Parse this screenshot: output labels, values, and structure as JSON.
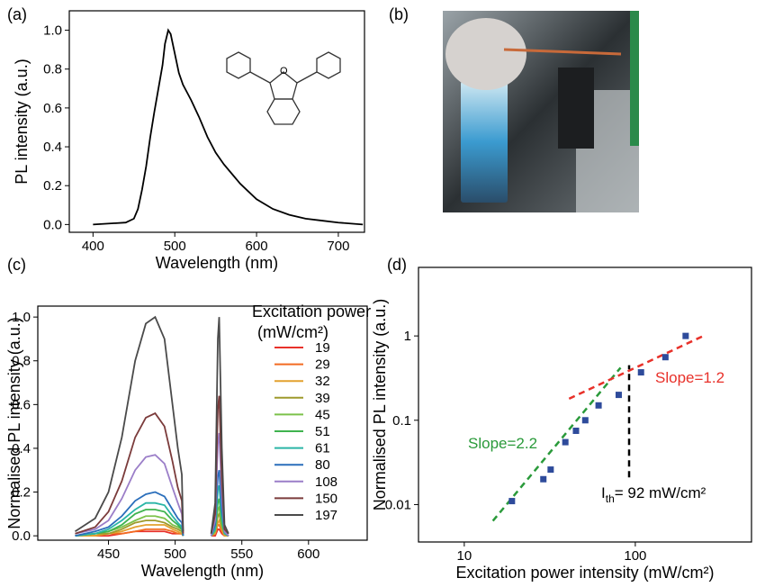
{
  "chart_data": [
    {
      "type": "line",
      "panel_label": "(a)",
      "x_label": "Wavelength (nm)",
      "y_label": "PL intensity (a.u.)",
      "color": "#000000",
      "x": [
        400,
        440,
        450,
        455,
        460,
        465,
        470,
        475,
        480,
        485,
        488,
        492,
        495,
        500,
        505,
        510,
        515,
        520,
        530,
        540,
        550,
        560,
        570,
        580,
        590,
        600,
        620,
        640,
        660,
        680,
        700,
        730
      ],
      "values": [
        0,
        0.01,
        0.03,
        0.08,
        0.18,
        0.3,
        0.45,
        0.58,
        0.7,
        0.82,
        0.93,
        1.0,
        0.98,
        0.88,
        0.78,
        0.72,
        0.68,
        0.64,
        0.55,
        0.45,
        0.37,
        0.31,
        0.26,
        0.21,
        0.17,
        0.13,
        0.08,
        0.05,
        0.03,
        0.02,
        0.01,
        0
      ],
      "xlim": [
        371,
        732
      ],
      "ylim": [
        -0.04,
        1.1
      ],
      "xticks": [
        400,
        500,
        600,
        700
      ],
      "yticks": [
        {
          "value": 0,
          "label": "0.0"
        },
        0.2,
        0.4,
        0.6,
        0.8,
        {
          "value": 1,
          "label": "1.0"
        }
      ]
    },
    {
      "type": "line",
      "panel_label": "(c)",
      "x_label": "Wavelength (nm)",
      "y_label": "Normalised PL intensity (a.u.)",
      "legend_title": [
        "Excitation power",
        "(mW/cm²)"
      ],
      "x": [
        425,
        440,
        450,
        460,
        470,
        478,
        485,
        492,
        498,
        502,
        505,
        506,
        515,
        527,
        530,
        532,
        533,
        535,
        537,
        540
      ],
      "series": [
        {
          "name": "19",
          "color": "#e8312a",
          "values": [
            0,
            0,
            0,
            0.01,
            0.02,
            0.02,
            0.02,
            0.02,
            0.01,
            0.01,
            0.01,
            0,
            null,
            0,
            0,
            0.03,
            0.03,
            0.01,
            0,
            0
          ]
        },
        {
          "name": "29",
          "color": "#f26b21",
          "values": [
            0,
            0,
            0.01,
            0.01,
            0.02,
            0.03,
            0.03,
            0.03,
            0.02,
            0.01,
            0.01,
            0,
            null,
            0,
            0.01,
            0.05,
            0.05,
            0.02,
            0,
            0
          ]
        },
        {
          "name": "32",
          "color": "#e3a12f",
          "values": [
            0,
            0,
            0.01,
            0.02,
            0.04,
            0.05,
            0.05,
            0.05,
            0.03,
            0.02,
            0.01,
            0,
            null,
            0,
            0.01,
            0.06,
            0.07,
            0.03,
            0,
            0
          ]
        },
        {
          "name": "39",
          "color": "#9e9a2c",
          "values": [
            0,
            0.01,
            0.01,
            0.03,
            0.06,
            0.07,
            0.07,
            0.06,
            0.04,
            0.03,
            0.02,
            0,
            null,
            0,
            0.02,
            0.09,
            0.1,
            0.04,
            0.01,
            0
          ]
        },
        {
          "name": "45",
          "color": "#7cc24a",
          "values": [
            0,
            0.01,
            0.02,
            0.04,
            0.07,
            0.09,
            0.09,
            0.08,
            0.05,
            0.04,
            0.03,
            0,
            null,
            0,
            0.02,
            0.12,
            0.13,
            0.05,
            0.01,
            0
          ]
        },
        {
          "name": "51",
          "color": "#3fb34f",
          "values": [
            0,
            0.01,
            0.02,
            0.05,
            0.1,
            0.12,
            0.12,
            0.11,
            0.07,
            0.05,
            0.03,
            0,
            null,
            0,
            0.03,
            0.15,
            0.17,
            0.07,
            0.01,
            0
          ]
        },
        {
          "name": "61",
          "color": "#2ab5a6",
          "values": [
            0,
            0.01,
            0.03,
            0.07,
            0.12,
            0.15,
            0.15,
            0.14,
            0.09,
            0.06,
            0.04,
            0,
            null,
            0,
            0.03,
            0.21,
            0.23,
            0.09,
            0.01,
            0
          ]
        },
        {
          "name": "80",
          "color": "#2a6ebb",
          "values": [
            0,
            0.02,
            0.04,
            0.09,
            0.16,
            0.19,
            0.2,
            0.18,
            0.12,
            0.08,
            0.06,
            0,
            null,
            0,
            0.05,
            0.27,
            0.3,
            0.12,
            0.02,
            0
          ]
        },
        {
          "name": "108",
          "color": "#9b7ec8",
          "values": [
            0.01,
            0.03,
            0.07,
            0.17,
            0.3,
            0.36,
            0.37,
            0.33,
            0.22,
            0.15,
            0.1,
            0.01,
            null,
            0,
            0.07,
            0.42,
            0.47,
            0.19,
            0.02,
            0
          ]
        },
        {
          "name": "150",
          "color": "#7b3b3b",
          "values": [
            0.01,
            0.04,
            0.11,
            0.25,
            0.45,
            0.54,
            0.56,
            0.5,
            0.34,
            0.22,
            0.16,
            0.01,
            null,
            0.01,
            0.1,
            0.58,
            0.64,
            0.26,
            0.03,
            0.01
          ]
        },
        {
          "name": "197",
          "color": "#4a4a4a",
          "values": [
            0.02,
            0.08,
            0.2,
            0.45,
            0.8,
            0.97,
            1.0,
            0.9,
            0.6,
            0.4,
            0.28,
            0.02,
            null,
            0.01,
            0.15,
            0.9,
            1.0,
            0.4,
            0.05,
            0.01
          ]
        }
      ],
      "xlim": [
        397,
        644
      ],
      "ylim": [
        -0.02,
        1.05
      ],
      "xticks": [
        450,
        500,
        550,
        600
      ],
      "yticks": [
        {
          "value": 0,
          "label": "0.0"
        },
        0.2,
        0.4,
        0.6,
        0.8,
        {
          "value": 1,
          "label": "1.0"
        }
      ]
    },
    {
      "type": "scatter",
      "panel_label": "(d)",
      "x_label": "Excitation power intensity (mW/cm²)",
      "y_label": "Normalised PL intensity (a.u.)",
      "log_x": true,
      "log_y": true,
      "color": "#2e4b9b",
      "x": [
        19,
        29,
        32,
        39,
        45,
        51,
        61,
        80,
        108,
        150,
        197
      ],
      "values": [
        0.011,
        0.02,
        0.026,
        0.055,
        0.075,
        0.1,
        0.15,
        0.2,
        0.37,
        0.56,
        1.0
      ],
      "fits": [
        {
          "color": "#2a9a3a",
          "x": [
            14.7,
            82
          ],
          "values": [
            0.0064,
            0.42
          ]
        },
        {
          "color": "#e8312a",
          "x": [
            41,
            250
          ],
          "values": [
            0.18,
            1.0
          ]
        }
      ],
      "threshold": {
        "color": "#000000",
        "x": 92,
        "y_range": [
          0.021,
          0.45
        ]
      },
      "annotations": [
        {
          "text": "Slope=2.2",
          "color": "#2a9a3a"
        },
        {
          "text": "Slope=1.2",
          "color": "#e8312a"
        }
      ],
      "threshold_label": {
        "symbol": "I",
        "subscript": "th",
        "text": "= 92 mW/cm²"
      },
      "xlim": [
        5.4,
        478
      ],
      "ylim": [
        0.0036,
        6.5
      ],
      "xticks": [
        10,
        100
      ],
      "yticks": [
        0.01,
        0.1,
        1
      ]
    }
  ],
  "photo": {
    "panel_label": "(b)"
  }
}
